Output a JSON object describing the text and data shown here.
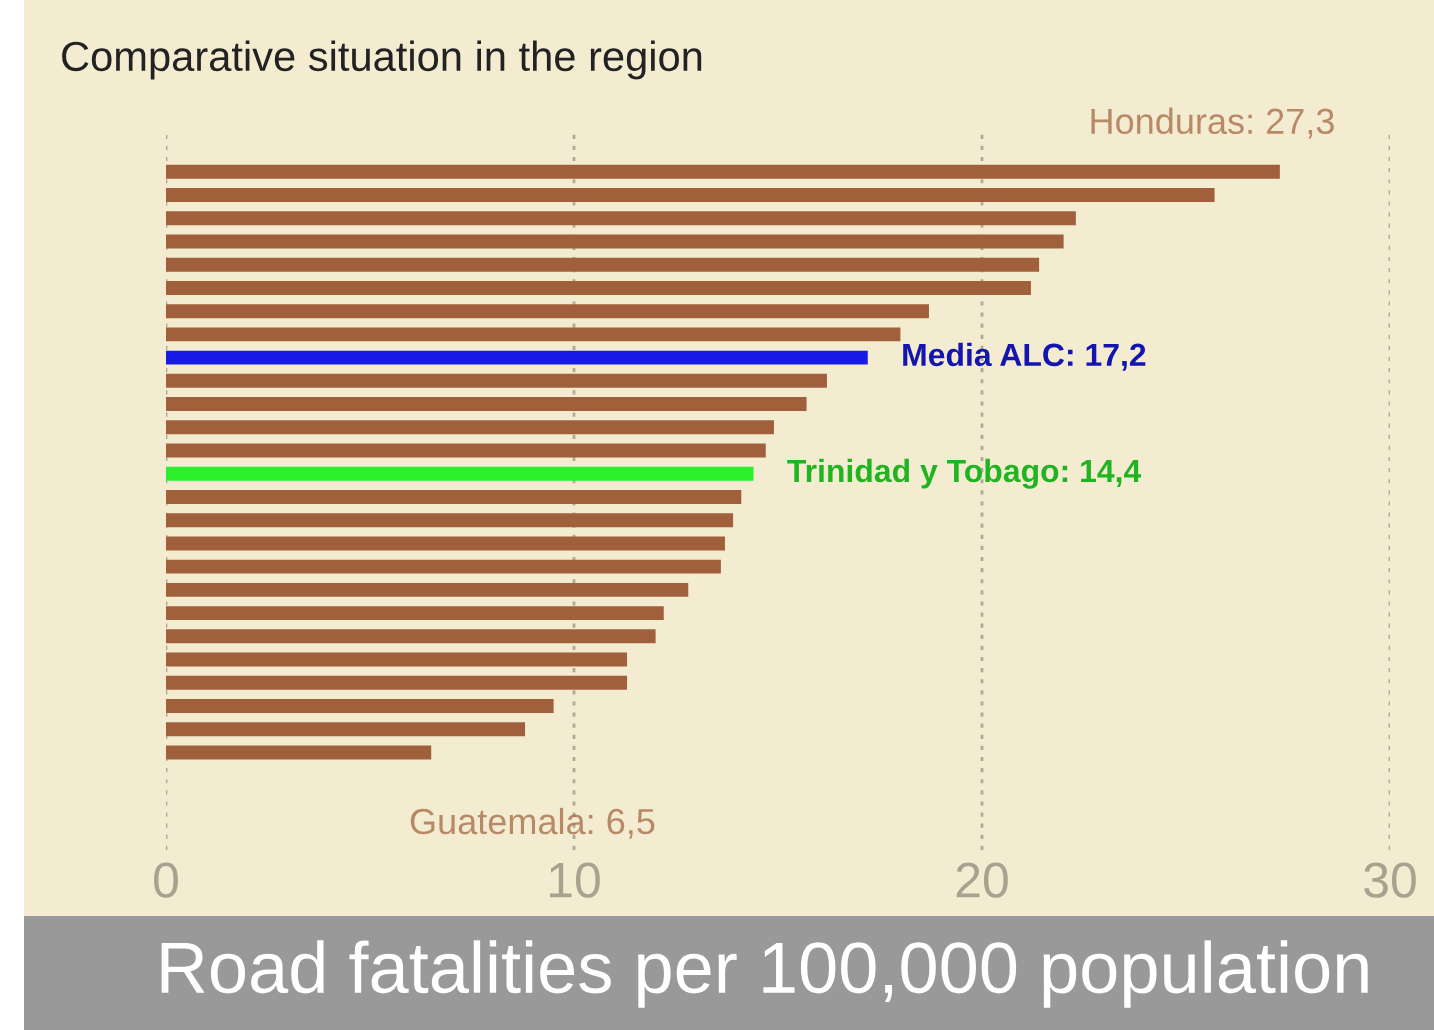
{
  "chart_data": {
    "type": "bar",
    "orientation": "horizontal",
    "title": "Comparative situation in the region",
    "xlabel": "Road fatalities per 100,000 population",
    "categories": [
      null,
      null,
      null,
      null,
      null,
      null,
      null,
      null,
      null,
      null,
      null,
      null,
      null,
      null,
      null,
      null,
      null,
      null,
      null,
      null,
      null,
      null,
      null,
      null,
      null,
      null
    ],
    "values": [
      27.3,
      25.7,
      22.3,
      22.0,
      21.4,
      21.2,
      18.7,
      18.0,
      17.2,
      16.2,
      15.7,
      14.9,
      14.7,
      14.4,
      14.1,
      13.9,
      13.7,
      13.6,
      12.8,
      12.2,
      12.0,
      11.3,
      11.3,
      9.5,
      8.8,
      6.5
    ],
    "colors": [
      "#a0603c",
      "#a0603c",
      "#a0603c",
      "#a0603c",
      "#a0603c",
      "#a0603c",
      "#a0603c",
      "#a0603c",
      "#1a1ae8",
      "#a0603c",
      "#a0603c",
      "#a0603c",
      "#a0603c",
      "#2cf02c",
      "#a0603c",
      "#a0603c",
      "#a0603c",
      "#a0603c",
      "#a0603c",
      "#a0603c",
      "#a0603c",
      "#a0603c",
      "#a0603c",
      "#a0603c",
      "#a0603c",
      "#a0603c"
    ],
    "xlim": [
      0,
      30
    ],
    "xticks": [
      0,
      10,
      20,
      30
    ],
    "grid": "x",
    "annotations": [
      "Honduras: 27,3",
      {
        "text": "Media ALC: 17,2",
        "x": 17.2
      },
      {
        "text": "Trinidad y Tobago: 14,4",
        "x": 14.4
      },
      "Guatemala: 6,5"
    ]
  }
}
